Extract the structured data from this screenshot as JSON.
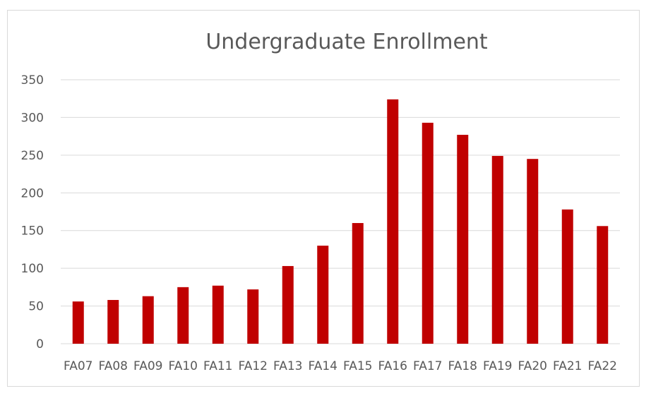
{
  "chart_data": {
    "type": "bar",
    "title": "Undergraduate Enrollment",
    "xlabel": "",
    "ylabel": "",
    "categories": [
      "FA07",
      "FA08",
      "FA09",
      "FA10",
      "FA11",
      "FA12",
      "FA13",
      "FA14",
      "FA15",
      "FA16",
      "FA17",
      "FA18",
      "FA19",
      "FA20",
      "FA21",
      "FA22"
    ],
    "values": [
      56,
      58,
      63,
      75,
      77,
      72,
      103,
      130,
      160,
      324,
      293,
      277,
      249,
      245,
      178,
      156
    ],
    "ylim": [
      0,
      350
    ],
    "yticks": [
      "0",
      "50",
      "100",
      "150",
      "200",
      "250",
      "300",
      "350"
    ],
    "grid": true,
    "legend": "none",
    "bar_color": "#C00000"
  }
}
